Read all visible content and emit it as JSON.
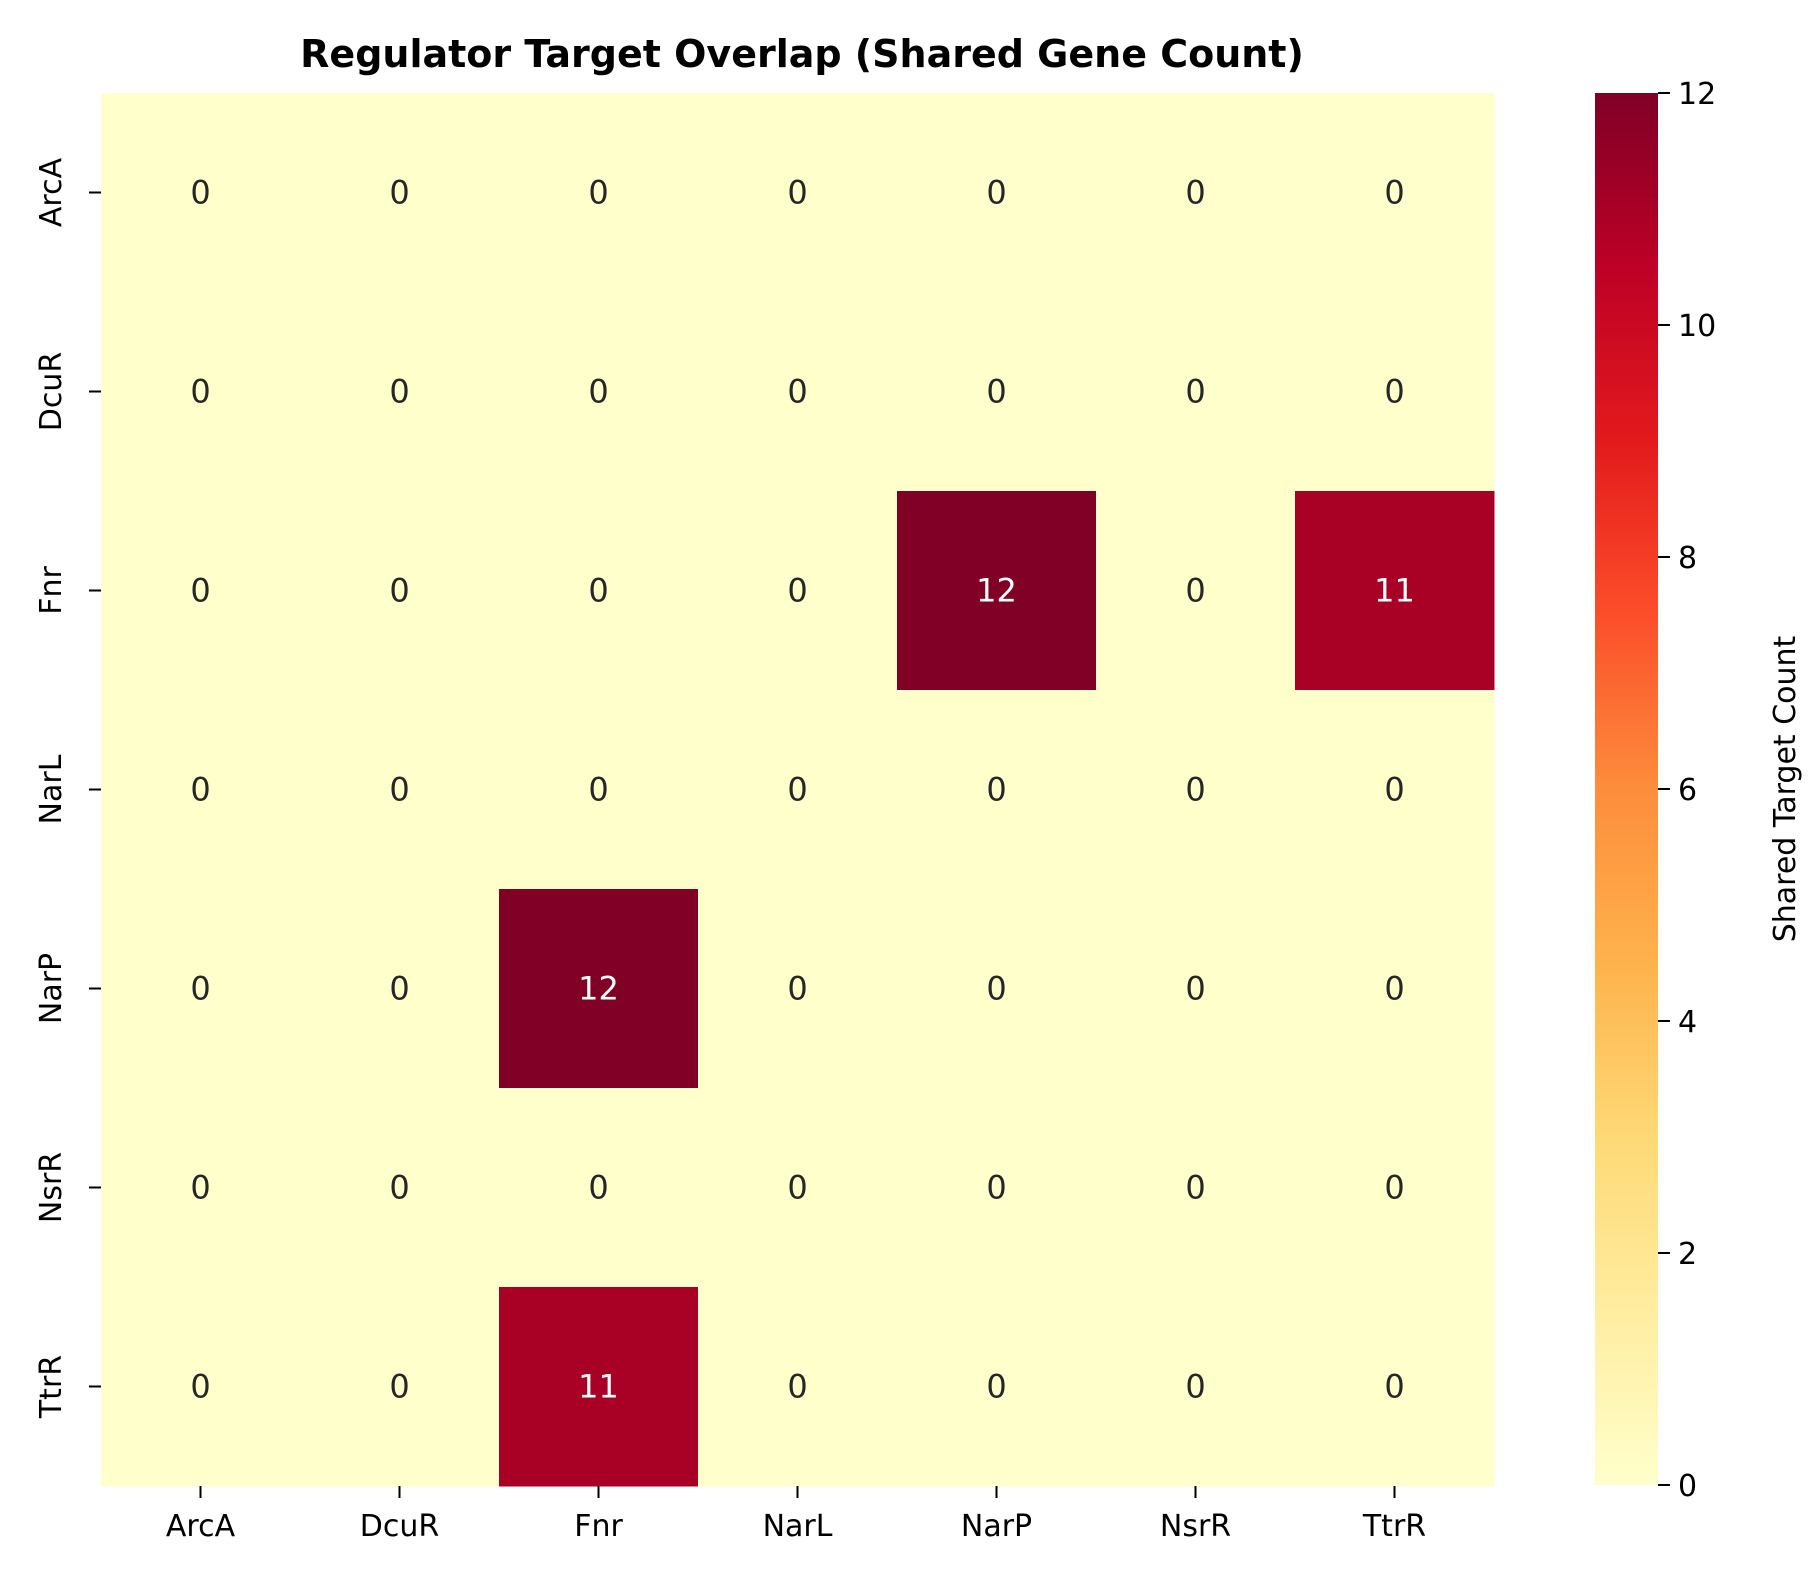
{
  "chart_data": {
    "type": "heatmap",
    "title": "Regulator Target Overlap (Shared Gene Count)",
    "xlabel": "",
    "ylabel": "",
    "x_categories": [
      "ArcA",
      "DcuR",
      "Fnr",
      "NarL",
      "NarP",
      "NsrR",
      "TtrR"
    ],
    "y_categories": [
      "ArcA",
      "DcuR",
      "Fnr",
      "NarL",
      "NarP",
      "NsrR",
      "TtrR"
    ],
    "values": [
      [
        0,
        0,
        0,
        0,
        0,
        0,
        0
      ],
      [
        0,
        0,
        0,
        0,
        0,
        0,
        0
      ],
      [
        0,
        0,
        0,
        0,
        12,
        0,
        11
      ],
      [
        0,
        0,
        0,
        0,
        0,
        0,
        0
      ],
      [
        0,
        0,
        12,
        0,
        0,
        0,
        0
      ],
      [
        0,
        0,
        0,
        0,
        0,
        0,
        0
      ],
      [
        0,
        0,
        11,
        0,
        0,
        0,
        0
      ]
    ],
    "annotated": true,
    "colormap": "YlOrRd",
    "colorbar": {
      "label": "Shared Target Count",
      "range": [
        0,
        12
      ],
      "ticks": [
        0,
        2,
        4,
        6,
        8,
        10,
        12
      ]
    }
  }
}
